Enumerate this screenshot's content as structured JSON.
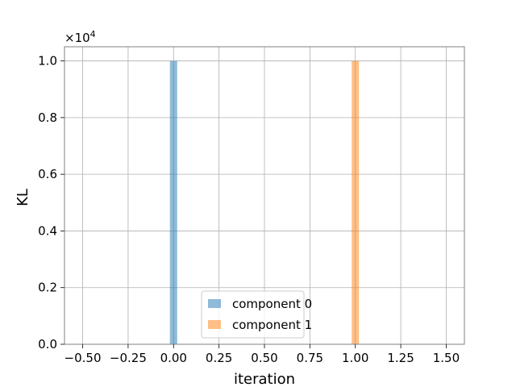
{
  "chart_data": {
    "type": "bar",
    "title": "",
    "xlabel": "iteration",
    "ylabel": "KL",
    "y_multiplier_label": "×10",
    "y_multiplier_exponent": "4",
    "xlim": [
      -0.6,
      1.6
    ],
    "ylim": [
      0,
      10500
    ],
    "xticks": [
      -0.5,
      -0.25,
      0.0,
      0.25,
      0.5,
      0.75,
      1.0,
      1.25,
      1.5
    ],
    "xtick_labels": [
      "−0.50",
      "−0.25",
      "0.00",
      "0.25",
      "0.50",
      "0.75",
      "1.00",
      "1.25",
      "1.50"
    ],
    "yticks": [
      0,
      2000,
      4000,
      6000,
      8000,
      10000
    ],
    "ytick_labels": [
      "0.0",
      "0.2",
      "0.4",
      "0.6",
      "0.8",
      "1.0"
    ],
    "grid": true,
    "legend_position": "bottom-center",
    "bar_width": 0.04,
    "series": [
      {
        "name": "component 0",
        "x": [
          0.0
        ],
        "values": [
          10000
        ],
        "color": "#1f77b4",
        "alpha": 0.5
      },
      {
        "name": "component 1",
        "x": [
          1.0
        ],
        "values": [
          10000
        ],
        "color": "#ff7f0e",
        "alpha": 0.5
      }
    ]
  }
}
